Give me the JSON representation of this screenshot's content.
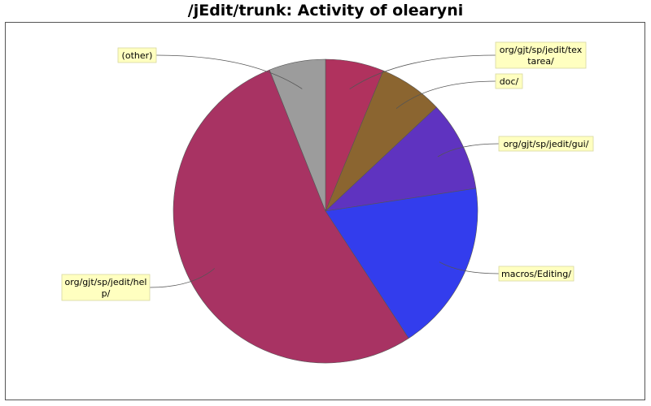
{
  "chart_data": {
    "type": "pie",
    "title": "/jEdit/trunk: Activity of olearyni",
    "start_angle_deg": 90,
    "direction": "clockwise",
    "slices": [
      {
        "label": [
          "org/gjt/sp/jedit/tex",
          "tarea/"
        ],
        "value": 6.2,
        "color": "#b0325e"
      },
      {
        "label": [
          "doc/"
        ],
        "value": 6.8,
        "color": "#8b6530"
      },
      {
        "label": [
          "org/gjt/sp/jedit/gui/"
        ],
        "value": 9.6,
        "color": "#5f33c0"
      },
      {
        "label": [
          "macros/Editing/"
        ],
        "value": 18.2,
        "color": "#333ded"
      },
      {
        "label": [
          "org/gjt/sp/jedit/hel",
          "p/"
        ],
        "value": 53.2,
        "color": "#a83363"
      },
      {
        "label": [
          "(other)"
        ],
        "value": 6.0,
        "color": "#9c9c9c"
      }
    ]
  }
}
